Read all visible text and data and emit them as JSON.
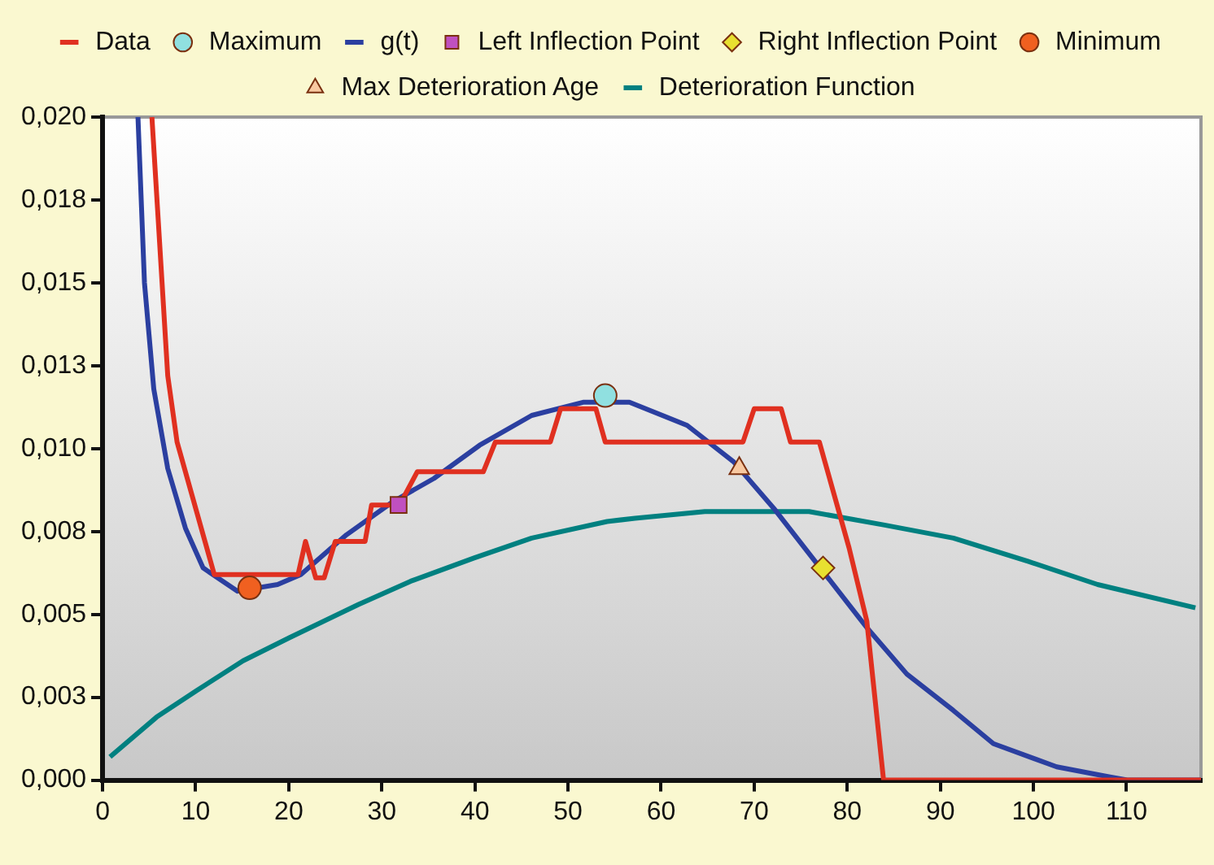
{
  "chart_data": {
    "type": "line",
    "legend": "top",
    "grid": false,
    "xlim": [
      0,
      118
    ],
    "xticks": [
      0,
      10,
      20,
      30,
      40,
      50,
      60,
      70,
      80,
      90,
      100,
      110
    ],
    "ylim": [
      0,
      0.02
    ],
    "yticks": [
      {
        "value": 0,
        "label": "0,000"
      },
      {
        "value": 0.0025,
        "label": "0,003"
      },
      {
        "value": 0.005,
        "label": "0,005"
      },
      {
        "value": 0.0075,
        "label": "0,008"
      },
      {
        "value": 0.01,
        "label": "0,010"
      },
      {
        "value": 0.0125,
        "label": "0,013"
      },
      {
        "value": 0.015,
        "label": "0,015"
      },
      {
        "value": 0.0175,
        "label": "0,018"
      },
      {
        "value": 0.02,
        "label": "0,020"
      }
    ],
    "series": [
      {
        "name": "Data",
        "type": "line",
        "marker": "none",
        "color": "#e03020",
        "x": [
          5.3,
          7,
          8,
          10.8,
          12,
          21,
          21.8,
          22.9,
          23.8,
          25,
          28.2,
          28.9,
          31.9,
          33.8,
          40.9,
          42.2,
          48.1,
          49.2,
          53,
          54,
          68.8,
          70,
          72.9,
          73.9,
          77,
          80.2,
          82.1,
          83.9,
          118
        ],
        "values": [
          0.02,
          0.0122,
          0.0102,
          0.0074,
          0.0062,
          0.0062,
          0.0072,
          0.0061,
          0.0061,
          0.0072,
          0.0072,
          0.0083,
          0.0083,
          0.0093,
          0.0093,
          0.0102,
          0.0102,
          0.0112,
          0.0112,
          0.0102,
          0.0102,
          0.0112,
          0.0112,
          0.0102,
          0.0102,
          0.007,
          0.0048,
          0,
          0
        ]
      },
      {
        "name": "Maximum",
        "type": "scatter",
        "marker": "circle",
        "color": "#90e0e0",
        "x": [
          54
        ],
        "values": [
          0.0116
        ]
      },
      {
        "name": "g(t)",
        "type": "line",
        "marker": "none",
        "color": "#2b3fa0",
        "x": [
          3.8,
          4.5,
          5.5,
          7,
          8.9,
          10.8,
          14.5,
          18.8,
          21.3,
          26.2,
          31.2,
          35.6,
          40.5,
          46.1,
          51.7,
          56.6,
          62.8,
          67.8,
          72.1,
          77.1,
          82.1,
          86.4,
          91.4,
          95.7,
          102.5,
          108.1,
          110.2,
          118
        ],
        "values": [
          0.02,
          0.015,
          0.0118,
          0.0094,
          0.0076,
          0.0064,
          0.0057,
          0.0059,
          0.0062,
          0.0074,
          0.0084,
          0.0091,
          0.0101,
          0.011,
          0.0114,
          0.0114,
          0.0107,
          0.0096,
          0.0082,
          0.0064,
          0.0046,
          0.0032,
          0.0021,
          0.0011,
          0.0004,
          0.0001,
          0,
          0
        ]
      },
      {
        "name": "Left Inflection Point",
        "type": "scatter",
        "marker": "square",
        "color": "#c050c0",
        "x": [
          31.8
        ],
        "values": [
          0.0083
        ]
      },
      {
        "name": "Right Inflection Point",
        "type": "scatter",
        "marker": "diamond",
        "color": "#e8e030",
        "x": [
          77.4
        ],
        "values": [
          0.0064
        ]
      },
      {
        "name": "Minimum",
        "type": "scatter",
        "marker": "circle",
        "color": "#f06020",
        "x": [
          15.8
        ],
        "values": [
          0.0058
        ]
      },
      {
        "name": "Max Deterioration Age",
        "type": "scatter",
        "marker": "triangle",
        "color": "#f8c8a0",
        "x": [
          68.4
        ],
        "values": [
          0.0094
        ]
      },
      {
        "name": "Deterioration Function",
        "type": "line",
        "marker": "none",
        "color": "#008080",
        "x": [
          0.8,
          5.8,
          10.1,
          15.1,
          20.1,
          27.5,
          33.1,
          39.9,
          46.1,
          54.2,
          57.2,
          64.7,
          75.9,
          83.9,
          91.4,
          99.4,
          106.9,
          117.4
        ],
        "values": [
          0.0007,
          0.0019,
          0.0027,
          0.0036,
          0.0043,
          0.0053,
          0.006,
          0.0067,
          0.0073,
          0.0078,
          0.0079,
          0.0081,
          0.0081,
          0.0077,
          0.0073,
          0.0066,
          0.0059,
          0.0052
        ]
      }
    ]
  }
}
